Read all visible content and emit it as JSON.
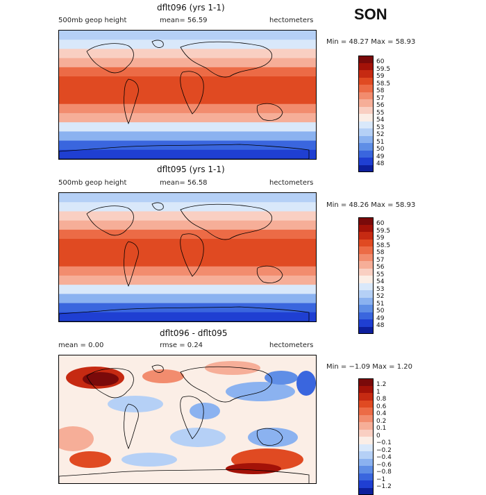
{
  "season": "SON",
  "panels": [
    {
      "title": "dflt096 (yrs 1-1)",
      "variable": "500mb geop height",
      "mean_text": "mean=  56.59",
      "rmse_text": "",
      "units": "hectometers",
      "minmax_text": "Min =  48.27 Max =  58.93",
      "colorbar_labels": [
        "60",
        "59.5",
        "59",
        "58.5",
        "58",
        "57",
        "56",
        "55",
        "54",
        "53",
        "52",
        "51",
        "50",
        "49",
        "48"
      ],
      "colors": [
        "#7a0a0a",
        "#a31208",
        "#c62a12",
        "#e04a22",
        "#ec6b46",
        "#f28c6e",
        "#f6ae98",
        "#f9cfc2",
        "#fbeee6",
        "#d9e8fa",
        "#b5d0f6",
        "#8bb2f0",
        "#5f8ee6",
        "#3a66de",
        "#1f3fd2",
        "#0d1f9c"
      ]
    },
    {
      "title": "dflt095 (yrs 1-1)",
      "variable": "500mb geop height",
      "mean_text": "mean=  56.58",
      "rmse_text": "",
      "units": "hectometers",
      "minmax_text": "Min =  48.26 Max =  58.93",
      "colorbar_labels": [
        "60",
        "59.5",
        "59",
        "58.5",
        "58",
        "57",
        "56",
        "55",
        "54",
        "53",
        "52",
        "51",
        "50",
        "49",
        "48"
      ],
      "colors": [
        "#7a0a0a",
        "#a31208",
        "#c62a12",
        "#e04a22",
        "#ec6b46",
        "#f28c6e",
        "#f6ae98",
        "#f9cfc2",
        "#fbeee6",
        "#d9e8fa",
        "#b5d0f6",
        "#8bb2f0",
        "#5f8ee6",
        "#3a66de",
        "#1f3fd2",
        "#0d1f9c"
      ]
    },
    {
      "title": "dflt096 - dflt095",
      "variable": "",
      "mean_text": "mean =    0.00",
      "rmse_text": "rmse =    0.24",
      "units": "hectometers",
      "minmax_text": "Min = −1.09 Max =   1.20",
      "colorbar_labels": [
        "1.2",
        "1",
        "0.8",
        "0.6",
        "0.4",
        "0.2",
        "0.1",
        "0",
        "−0.1",
        "−0.2",
        "−0.4",
        "−0.6",
        "−0.8",
        "−1",
        "−1.2"
      ],
      "colors": [
        "#7a0a0a",
        "#a31208",
        "#c62a12",
        "#e04a22",
        "#ec6b46",
        "#f28c6e",
        "#f6ae98",
        "#f9cfc2",
        "#fbeee6",
        "#d9e8fa",
        "#b5d0f6",
        "#8bb2f0",
        "#5f8ee6",
        "#3a66de",
        "#1f3fd2",
        "#0d1f9c"
      ]
    }
  ],
  "chart_data": [
    {
      "type": "heatmap",
      "title": "dflt096 (yrs 1-1)",
      "field": "500mb geop height",
      "units": "hectometers",
      "mean": 56.59,
      "min": 48.27,
      "max": 58.93,
      "levels": [
        48,
        49,
        50,
        51,
        52,
        53,
        54,
        55,
        56,
        57,
        58,
        58.5,
        59,
        59.5,
        60
      ],
      "zonal_profile_south_to_north": [
        48.3,
        49.8,
        51.5,
        53.8,
        56.0,
        57.8,
        58.6,
        58.8,
        58.7,
        58.2,
        56.9,
        55.0,
        53.2,
        52.1
      ]
    },
    {
      "type": "heatmap",
      "title": "dflt095 (yrs 1-1)",
      "field": "500mb geop height",
      "units": "hectometers",
      "mean": 56.58,
      "min": 48.26,
      "max": 58.93,
      "levels": [
        48,
        49,
        50,
        51,
        52,
        53,
        54,
        55,
        56,
        57,
        58,
        58.5,
        59,
        59.5,
        60
      ],
      "zonal_profile_south_to_north": [
        48.3,
        49.8,
        51.5,
        53.8,
        56.0,
        57.8,
        58.6,
        58.8,
        58.7,
        58.2,
        56.9,
        55.0,
        53.2,
        52.1
      ]
    },
    {
      "type": "heatmap",
      "title": "dflt096 - dflt095",
      "units": "hectometers",
      "mean": 0.0,
      "rmse": 0.24,
      "min": -1.09,
      "max": 1.2,
      "levels": [
        -1.2,
        -1,
        -0.8,
        -0.6,
        -0.4,
        -0.2,
        -0.1,
        0,
        0.1,
        0.2,
        0.4,
        0.6,
        0.8,
        1,
        1.2
      ]
    }
  ]
}
